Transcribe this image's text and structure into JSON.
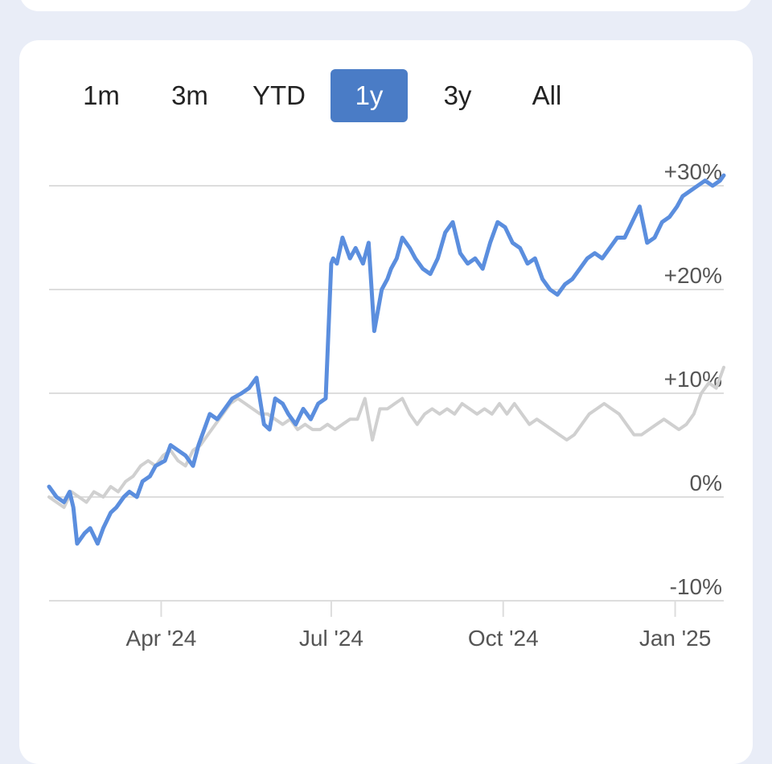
{
  "tabs": [
    {
      "label": "1m",
      "active": false
    },
    {
      "label": "3m",
      "active": false
    },
    {
      "label": "YTD",
      "active": false
    },
    {
      "label": "1y",
      "active": true
    },
    {
      "label": "3y",
      "active": false
    },
    {
      "label": "All",
      "active": false
    }
  ],
  "colors": {
    "accent": "#4a7cc6",
    "primary_line": "#5b8ede",
    "benchmark_line": "#d0d0d0",
    "grid": "#dddddd",
    "text": "#555555"
  },
  "chart_data": {
    "type": "line",
    "title": "",
    "xlabel": "",
    "ylabel": "",
    "ylim": [
      -10,
      30
    ],
    "y_ticks": [
      30,
      20,
      10,
      0,
      -10
    ],
    "y_tick_labels": [
      "+30%",
      "+20%",
      "+10%",
      "0%",
      "-10%"
    ],
    "x_range": [
      "2024-02-01",
      "2025-01-27"
    ],
    "x_ticks": [
      {
        "date": "2024-04-01",
        "label": "Apr '24"
      },
      {
        "date": "2024-07-01",
        "label": "Jul '24"
      },
      {
        "date": "2024-10-01",
        "label": "Oct '24"
      },
      {
        "date": "2025-01-01",
        "label": "Jan '25"
      }
    ],
    "grid": true,
    "legend": "none",
    "series": [
      {
        "role": "primary",
        "x": [
          "2024-02-01",
          "2024-02-05",
          "2024-02-09",
          "2024-02-12",
          "2024-02-14",
          "2024-02-16",
          "2024-02-20",
          "2024-02-23",
          "2024-02-27",
          "2024-03-01",
          "2024-03-05",
          "2024-03-08",
          "2024-03-12",
          "2024-03-15",
          "2024-03-19",
          "2024-03-22",
          "2024-03-26",
          "2024-03-29",
          "2024-04-03",
          "2024-04-06",
          "2024-04-10",
          "2024-04-14",
          "2024-04-18",
          "2024-04-21",
          "2024-04-24",
          "2024-04-27",
          "2024-05-01",
          "2024-05-05",
          "2024-05-09",
          "2024-05-14",
          "2024-05-18",
          "2024-05-22",
          "2024-05-26",
          "2024-05-29",
          "2024-06-01",
          "2024-06-05",
          "2024-06-08",
          "2024-06-12",
          "2024-06-16",
          "2024-06-20",
          "2024-06-24",
          "2024-06-28",
          "2024-07-01",
          "2024-07-02",
          "2024-07-04",
          "2024-07-07",
          "2024-07-11",
          "2024-07-14",
          "2024-07-18",
          "2024-07-21",
          "2024-07-24",
          "2024-07-28",
          "2024-07-31",
          "2024-08-02",
          "2024-08-05",
          "2024-08-08",
          "2024-08-12",
          "2024-08-15",
          "2024-08-19",
          "2024-08-23",
          "2024-08-27",
          "2024-08-31",
          "2024-09-04",
          "2024-09-08",
          "2024-09-12",
          "2024-09-16",
          "2024-09-20",
          "2024-09-24",
          "2024-09-28",
          "2024-10-02",
          "2024-10-06",
          "2024-10-10",
          "2024-10-14",
          "2024-10-18",
          "2024-10-22",
          "2024-10-26",
          "2024-10-30",
          "2024-11-03",
          "2024-11-07",
          "2024-11-11",
          "2024-11-15",
          "2024-11-19",
          "2024-11-23",
          "2024-11-27",
          "2024-12-01",
          "2024-12-05",
          "2024-12-09",
          "2024-12-13",
          "2024-12-17",
          "2024-12-21",
          "2024-12-25",
          "2024-12-29",
          "2025-01-02",
          "2025-01-05",
          "2025-01-09",
          "2025-01-13",
          "2025-01-17",
          "2025-01-21",
          "2025-01-25",
          "2025-01-27"
        ],
        "values": [
          1.0,
          0.0,
          -0.5,
          0.5,
          -1.0,
          -4.5,
          -3.5,
          -3.0,
          -4.5,
          -3.0,
          -1.5,
          -1.0,
          0.0,
          0.5,
          0.0,
          1.5,
          2.0,
          3.0,
          3.5,
          5.0,
          4.5,
          4.0,
          3.0,
          5.0,
          6.5,
          8.0,
          7.5,
          8.5,
          9.5,
          10.0,
          10.5,
          11.5,
          7.0,
          6.5,
          9.5,
          9.0,
          8.0,
          7.0,
          8.5,
          7.5,
          9.0,
          9.5,
          22.5,
          23.0,
          22.5,
          25.0,
          23.0,
          24.0,
          22.5,
          24.5,
          16.0,
          20.0,
          21.0,
          22.0,
          23.0,
          25.0,
          24.0,
          23.0,
          22.0,
          21.5,
          23.0,
          25.5,
          26.5,
          23.5,
          22.5,
          23.0,
          22.0,
          24.5,
          26.5,
          26.0,
          24.5,
          24.0,
          22.5,
          23.0,
          21.0,
          20.0,
          19.5,
          20.5,
          21.0,
          22.0,
          23.0,
          23.5,
          23.0,
          24.0,
          25.0,
          25.0,
          26.5,
          28.0,
          24.5,
          25.0,
          26.5,
          27.0,
          28.0,
          29.0,
          29.5,
          30.0,
          30.5,
          30.0,
          30.5,
          31.0
        ]
      },
      {
        "role": "benchmark",
        "x": [
          "2024-02-01",
          "2024-02-05",
          "2024-02-09",
          "2024-02-13",
          "2024-02-17",
          "2024-02-21",
          "2024-02-25",
          "2024-03-01",
          "2024-03-05",
          "2024-03-09",
          "2024-03-13",
          "2024-03-17",
          "2024-03-21",
          "2024-03-25",
          "2024-03-29",
          "2024-04-02",
          "2024-04-06",
          "2024-04-10",
          "2024-04-14",
          "2024-04-18",
          "2024-04-22",
          "2024-04-26",
          "2024-04-30",
          "2024-05-04",
          "2024-05-08",
          "2024-05-12",
          "2024-05-16",
          "2024-05-20",
          "2024-05-24",
          "2024-05-28",
          "2024-06-01",
          "2024-06-05",
          "2024-06-09",
          "2024-06-13",
          "2024-06-17",
          "2024-06-21",
          "2024-06-25",
          "2024-06-29",
          "2024-07-03",
          "2024-07-07",
          "2024-07-11",
          "2024-07-15",
          "2024-07-19",
          "2024-07-23",
          "2024-07-27",
          "2024-07-31",
          "2024-08-04",
          "2024-08-08",
          "2024-08-12",
          "2024-08-16",
          "2024-08-20",
          "2024-08-24",
          "2024-08-28",
          "2024-09-01",
          "2024-09-05",
          "2024-09-09",
          "2024-09-13",
          "2024-09-17",
          "2024-09-21",
          "2024-09-25",
          "2024-09-29",
          "2024-10-03",
          "2024-10-07",
          "2024-10-11",
          "2024-10-15",
          "2024-10-19",
          "2024-10-23",
          "2024-10-27",
          "2024-10-31",
          "2024-11-04",
          "2024-11-08",
          "2024-11-12",
          "2024-11-16",
          "2024-11-20",
          "2024-11-24",
          "2024-11-28",
          "2024-12-02",
          "2024-12-06",
          "2024-12-10",
          "2024-12-14",
          "2024-12-18",
          "2024-12-22",
          "2024-12-26",
          "2024-12-30",
          "2025-01-03",
          "2025-01-07",
          "2025-01-11",
          "2025-01-15",
          "2025-01-19",
          "2025-01-23",
          "2025-01-27"
        ],
        "values": [
          0.0,
          -0.5,
          -1.0,
          0.5,
          0.0,
          -0.5,
          0.5,
          0.0,
          1.0,
          0.5,
          1.5,
          2.0,
          3.0,
          3.5,
          3.0,
          4.0,
          4.5,
          3.5,
          3.0,
          4.5,
          5.0,
          6.0,
          7.0,
          8.0,
          9.0,
          9.5,
          9.0,
          8.5,
          8.0,
          8.0,
          7.5,
          7.0,
          7.5,
          6.5,
          7.0,
          6.5,
          6.5,
          7.0,
          6.5,
          7.0,
          7.5,
          7.5,
          9.5,
          5.5,
          8.5,
          8.5,
          9.0,
          9.5,
          8.0,
          7.0,
          8.0,
          8.5,
          8.0,
          8.5,
          8.0,
          9.0,
          8.5,
          8.0,
          8.5,
          8.0,
          9.0,
          8.0,
          9.0,
          8.0,
          7.0,
          7.5,
          7.0,
          6.5,
          6.0,
          5.5,
          6.0,
          7.0,
          8.0,
          8.5,
          9.0,
          8.5,
          8.0,
          7.0,
          6.0,
          6.0,
          6.5,
          7.0,
          7.5,
          7.0,
          6.5,
          7.0,
          8.0,
          10.0,
          11.0,
          10.5,
          12.5
        ]
      }
    ]
  }
}
